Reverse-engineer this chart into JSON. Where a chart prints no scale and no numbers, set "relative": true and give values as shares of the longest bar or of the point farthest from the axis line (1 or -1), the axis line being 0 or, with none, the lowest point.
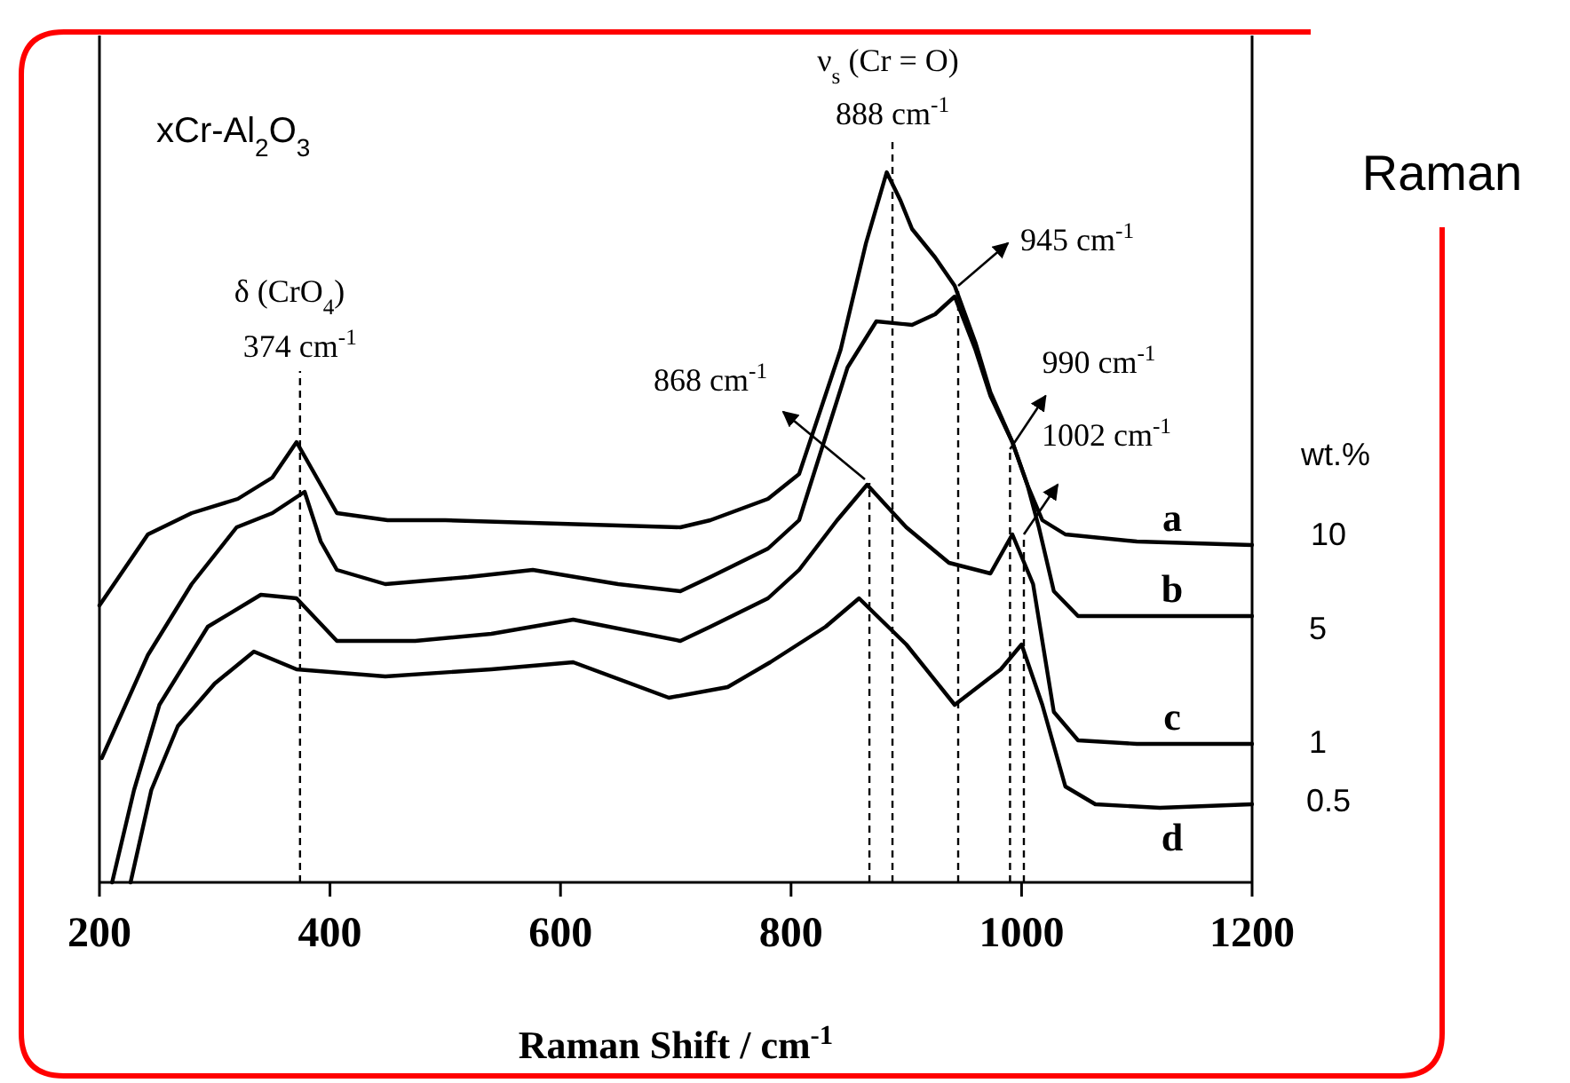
{
  "chart_data": {
    "type": "line",
    "relative": true,
    "xlabel": "Raman Shift / cm$^{-1}$",
    "xlim": [
      200,
      1200
    ],
    "xticks": [
      200,
      400,
      600,
      800,
      1000,
      1200
    ],
    "legend": false,
    "grid": false,
    "line_style": "solid",
    "marker": "none",
    "series": [
      {
        "name": "a",
        "color": "#000000",
        "x": [
          200,
          242,
          280,
          320,
          350,
          371,
          385,
          406,
          450,
          500,
          600,
          704,
          730,
          780,
          807,
          843,
          865,
          883,
          895,
          905,
          925,
          942,
          960,
          973,
          992,
          1005,
          1018,
          1038,
          1100,
          1200
        ],
        "values": [
          0.39,
          0.49,
          0.52,
          0.54,
          0.57,
          0.62,
          0.58,
          0.52,
          0.51,
          0.51,
          0.505,
          0.5,
          0.51,
          0.54,
          0.575,
          0.75,
          0.9,
          1.0,
          0.96,
          0.92,
          0.88,
          0.84,
          0.76,
          0.69,
          0.62,
          0.56,
          0.51,
          0.49,
          0.48,
          0.475
        ]
      },
      {
        "name": "b",
        "color": "#000000",
        "x": [
          202,
          242,
          280,
          319,
          350,
          378,
          392,
          406,
          448,
          520,
          576,
          650,
          704,
          730,
          780,
          807,
          849,
          874,
          905,
          925,
          942,
          960,
          973,
          992,
          1005,
          1015,
          1028,
          1049,
          1100,
          1200
        ],
        "values": [
          0.175,
          0.32,
          0.42,
          0.5,
          0.52,
          0.55,
          0.48,
          0.44,
          0.42,
          0.43,
          0.44,
          0.42,
          0.41,
          0.43,
          0.47,
          0.51,
          0.725,
          0.79,
          0.785,
          0.8,
          0.825,
          0.75,
          0.685,
          0.62,
          0.56,
          0.5,
          0.41,
          0.375,
          0.375,
          0.375
        ]
      },
      {
        "name": "c",
        "color": "#000000",
        "x": [
          211,
          230,
          252,
          294,
          340,
          371,
          406,
          474,
          540,
          611,
          704,
          730,
          780,
          807,
          840,
          866,
          900,
          937,
          973,
          992,
          1010,
          1028,
          1049,
          1100,
          1200
        ],
        "values": [
          0.0,
          0.13,
          0.25,
          0.36,
          0.405,
          0.4,
          0.34,
          0.34,
          0.35,
          0.37,
          0.34,
          0.36,
          0.4,
          0.44,
          0.51,
          0.56,
          0.5,
          0.45,
          0.435,
          0.49,
          0.42,
          0.24,
          0.2,
          0.195,
          0.195
        ]
      },
      {
        "name": "d",
        "color": "#000000",
        "x": [
          227,
          245,
          268,
          300,
          334,
          371,
          448,
          540,
          611,
          694,
          745,
          782,
          830,
          859,
          900,
          942,
          982,
          1000,
          1018,
          1038,
          1064,
          1120,
          1200
        ],
        "values": [
          0.0,
          0.13,
          0.22,
          0.28,
          0.325,
          0.3,
          0.29,
          0.3,
          0.31,
          0.26,
          0.275,
          0.31,
          0.36,
          0.4,
          0.335,
          0.25,
          0.3,
          0.335,
          0.25,
          0.135,
          0.11,
          0.105,
          0.11
        ]
      }
    ],
    "ref_lines": [
      {
        "axis": "x",
        "value": 374,
        "label": "374 cm$^{-1}$",
        "line_style": "dashed",
        "color": "#000000"
      },
      {
        "axis": "x",
        "value": 868,
        "line_style": "dashed",
        "color": "#000000"
      },
      {
        "axis": "x",
        "value": 888,
        "label": "888 cm$^{-1}$",
        "line_style": "dashed",
        "color": "#000000"
      },
      {
        "axis": "x",
        "value": 945,
        "line_style": "dashed",
        "color": "#000000"
      },
      {
        "axis": "x",
        "value": 990,
        "line_style": "dashed",
        "color": "#000000"
      },
      {
        "axis": "x",
        "value": 1002,
        "line_style": "dashed",
        "color": "#000000"
      }
    ],
    "annotations": [
      "xCr-Al$_{2}$O$_{3}$",
      "δ (CrO$_{4}$)",
      "ν$_{s}$ (Cr = O)",
      "868 cm$^{-1}$",
      {
        "text": "945 cm$^{-1}$",
        "x": 945,
        "y": 0.84
      },
      {
        "text": "990 cm$^{-1}$",
        "x": 990,
        "y": 0.61
      },
      {
        "text": "1002 cm$^{-1}$",
        "x": 1002,
        "y": 0.49
      },
      "wt.%",
      "10",
      "5",
      "1",
      "0.5",
      "Raman"
    ]
  }
}
